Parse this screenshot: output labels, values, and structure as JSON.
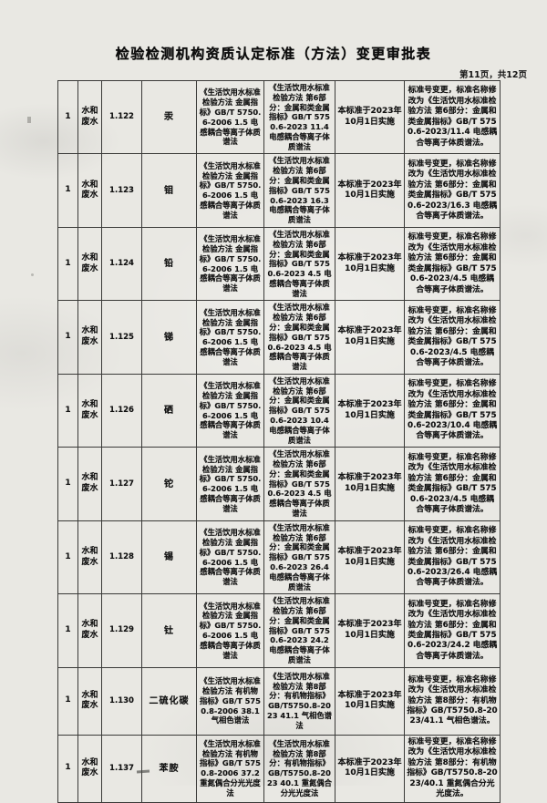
{
  "page": {
    "title": "检验检测机构资质认定标准（方法）变更审批表",
    "page_indicator": "第11页，共12页"
  },
  "table": {
    "rows": [
      {
        "seq": "1",
        "category": "水和废水",
        "item_no": "1.122",
        "parameter": "汞",
        "old_standard": "《生活饮用水标准检验方法 金属指标》GB/T 5750.6-2006 1.5 电感耦合等离子体质谱法",
        "new_standard": "《生活饮用水标准检验方法 第6部分：金属和类金属指标》GB/T 5750.6-2023 11.4 电感耦合等离子体质谱法",
        "implementation": "本标准于2023年10月1日实施",
        "remark": "标准号变更，标准名称修改为《生活饮用水标准检验方法 第6部分：金属和类金属指标》GB/T 5750.6-2023/11.4 电感耦合等离子体质谱法。"
      },
      {
        "seq": "1",
        "category": "水和废水",
        "item_no": "1.123",
        "parameter": "钼",
        "old_standard": "《生活饮用水标准检验方法 金属指标》GB/T 5750.6-2006 1.5 电感耦合等离子体质谱法",
        "new_standard": "《生活饮用水标准检验方法 第6部分：金属和类金属指标》GB/T 5750.6-2023 16.3 电感耦合等离子体质谱法",
        "implementation": "本标准于2023年10月1日实施",
        "remark": "标准号变更，标准名称修改为《生活饮用水标准检验方法 第6部分：金属和类金属指标》GB/T 5750.6-2023/16.3 电感耦合等离子体质谱法。"
      },
      {
        "seq": "1",
        "category": "水和废水",
        "item_no": "1.124",
        "parameter": "铅",
        "old_standard": "《生活饮用水标准检验方法 金属指标》GB/T 5750.6-2006 1.5 电感耦合等离子体质谱法",
        "new_standard": "《生活饮用水标准检验方法 第6部分：金属和类金属指标》GB/T 5750.6-2023 4.5 电感耦合等离子体质谱法",
        "implementation": "本标准于2023年10月1日实施",
        "remark": "标准号变更，标准名称修改为《生活饮用水标准检验方法 第6部分：金属和类金属指标》GB/T 5750.6-2023/4.5 电感耦合等离子体质谱法。"
      },
      {
        "seq": "1",
        "category": "水和废水",
        "item_no": "1.125",
        "parameter": "锑",
        "old_standard": "《生活饮用水标准检验方法 金属指标》GB/T 5750.6-2006 1.5 电感耦合等离子体质谱法",
        "new_standard": "《生活饮用水标准检验方法 第6部分：金属和类金属指标》GB/T 5750.6-2023 4.5 电感耦合等离子体质谱法",
        "implementation": "本标准于2023年10月1日实施",
        "remark": "标准号变更，标准名称修改为《生活饮用水标准检验方法 第6部分：金属和类金属指标》GB/T 5750.6-2023/4.5 电感耦合等离子体质谱法。"
      },
      {
        "seq": "1",
        "category": "水和废水",
        "item_no": "1.126",
        "parameter": "硒",
        "old_standard": "《生活饮用水标准检验方法 金属指标》GB/T 5750.6-2006 1.5 电感耦合等离子体质谱法",
        "new_standard": "《生活饮用水标准检验方法 第6部分：金属和类金属指标》GB/T 5750.6-2023 10.4 电感耦合等离子体质谱法",
        "implementation": "本标准于2023年10月1日实施",
        "remark": "标准号变更，标准名称修改为《生活饮用水标准检验方法 第6部分：金属和类金属指标》GB/T 5750.6-2023/10.4 电感耦合等离子体质谱法。"
      },
      {
        "seq": "1",
        "category": "水和废水",
        "item_no": "1.127",
        "parameter": "铊",
        "old_standard": "《生活饮用水标准检验方法 金属指标》GB/T 5750.6-2006 1.5 电感耦合等离子体质谱法",
        "new_standard": "《生活饮用水标准检验方法 第6部分：金属和类金属指标》GB/T 5750.6-2023 4.5 电感耦合等离子体质谱法",
        "implementation": "本标准于2023年10月1日实施",
        "remark": "标准号变更，标准名称修改为《生活饮用水标准检验方法 第6部分：金属和类金属指标》GB/T 5750.6-2023/4.5 电感耦合等离子体质谱法。"
      },
      {
        "seq": "1",
        "category": "水和废水",
        "item_no": "1.128",
        "parameter": "锡",
        "old_standard": "《生活饮用水标准检验方法 金属指标》GB/T 5750.6-2006 1.5 电感耦合等离子体质谱法",
        "new_standard": "《生活饮用水标准检验方法 第6部分：金属和类金属指标》GB/T 5750.6-2023 26.4 电感耦合等离子体质谱法",
        "implementation": "本标准于2023年10月1日实施",
        "remark": "标准号变更，标准名称修改为《生活饮用水标准检验方法 第6部分：金属和类金属指标》GB/T 5750.6-2023/26.4 电感耦合等离子体质谱法。"
      },
      {
        "seq": "1",
        "category": "水和废水",
        "item_no": "1.129",
        "parameter": "钍",
        "old_standard": "《生活饮用水标准检验方法 金属指标》GB/T 5750.6-2006 1.5 电感耦合等离子体质谱法",
        "new_standard": "《生活饮用水标准检验方法 第6部分：金属和类金属指标》GB/T 5750.6-2023 24.2 电感耦合等离子体质谱法",
        "implementation": "本标准于2023年10月1日实施",
        "remark": "标准号变更，标准名称修改为《生活饮用水标准检验方法 第6部分：金属和类金属指标》GB/T 5750.6-2023/24.2 电感耦合等离子体质谱法。"
      },
      {
        "seq": "1",
        "category": "水和废水",
        "item_no": "1.130",
        "parameter": "二硫化碳",
        "old_standard": "《生活饮用水标准检验方法 有机物指标》GB/T 5750.8-2006 38.1 气相色谱法",
        "new_standard": "《生活饮用水标准检验方法 第8部分：有机物指标》GB/T5750.8-2023 41.1 气相色谱法",
        "implementation": "本标准于2023年10月1日实施",
        "remark": "标准号变更，标准名称修改为《生活饮用水标准检验方法 第8部分：有机物指标》GB/T5750.8-2023/41.1 气相色谱法。"
      },
      {
        "seq": "1",
        "category": "水和废水",
        "item_no": "1.137",
        "parameter": "苯胺",
        "old_standard": "《生活饮用水标准检验方法 有机物指标》GB/T 5750.8-2006 37.2 重氮偶合分光光度法",
        "new_standard": "《生活饮用水标准检验方法 第8部分：有机物指标》GB/T5750.8-2023 40.1 重氮偶合分光光度法",
        "implementation": "本标准于2023年10月1日实施",
        "remark": "标准号变更，标准名称修改为《生活饮用水标准检验方法 第8部分：有机物指标》GB/T5750.8-2023/40.1 重氮偶合分光光度法。"
      }
    ]
  }
}
